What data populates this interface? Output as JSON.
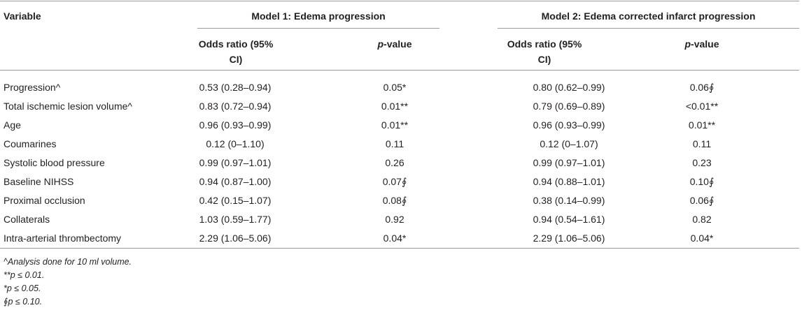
{
  "table": {
    "headers": {
      "variable": "Variable",
      "model1": "Model 1: Edema progression",
      "model2": "Model 2: Edema corrected infarct progression",
      "odds_ratio_line1": "Odds ratio (95%",
      "odds_ratio_line2": "CI)",
      "p_value_italic": "p",
      "p_value_rest": "-value"
    },
    "rows": [
      {
        "variable": "Progression^",
        "m1_or": "0.53 (0.28–0.94)",
        "m1_p": "0.05*",
        "m2_or": "0.80 (0.62–0.99)",
        "m2_p": "0.06∮"
      },
      {
        "variable": "Total ischemic lesion volume^",
        "m1_or": "0.83 (0.72–0.94)",
        "m1_p": "0.01**",
        "m2_or": "0.79 (0.69–0.89)",
        "m2_p": "<0.01**"
      },
      {
        "variable": "Age",
        "m1_or": "0.96 (0.93–0.99)",
        "m1_p": "0.01**",
        "m2_or": "0.96 (0.93–0.99)",
        "m2_p": "0.01**"
      },
      {
        "variable": "Coumarines",
        "m1_or": "0.12 (0–1.10)",
        "m1_p": "0.11",
        "m2_or": "0.12 (0–1.07)",
        "m2_p": "0.11"
      },
      {
        "variable": "Systolic blood pressure",
        "m1_or": "0.99 (0.97–1.01)",
        "m1_p": "0.26",
        "m2_or": "0.99 (0.97–1.01)",
        "m2_p": "0.23"
      },
      {
        "variable": "Baseline NIHSS",
        "m1_or": "0.94 (0.87–1.00)",
        "m1_p": "0.07∮",
        "m2_or": "0.94 (0.88–1.01)",
        "m2_p": "0.10∮"
      },
      {
        "variable": "Proximal occlusion",
        "m1_or": "0.42 (0.15–1.07)",
        "m1_p": "0.08∮",
        "m2_or": "0.38 (0.14–0.99)",
        "m2_p": "0.06∮"
      },
      {
        "variable": "Collaterals",
        "m1_or": "1.03 (0.59–1.77)",
        "m1_p": "0.92",
        "m2_or": "0.94 (0.54–1.61)",
        "m2_p": "0.82"
      },
      {
        "variable": "Intra-arterial thrombectomy",
        "m1_or": "2.29 (1.06–5.06)",
        "m1_p": "0.04*",
        "m2_or": "2.29 (1.06–5.06)",
        "m2_p": "0.04*"
      }
    ]
  },
  "footnotes": [
    "^Analysis done for 10 ml volume.",
    "**p ≤ 0.01.",
    "*p ≤ 0.05.",
    "∮p ≤ 0.10."
  ]
}
